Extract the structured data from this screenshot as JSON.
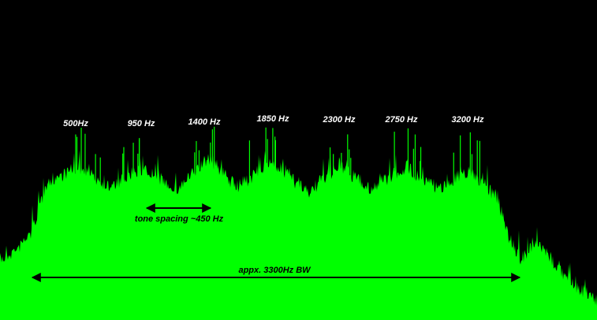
{
  "tones": [
    "500Hz",
    "950 Hz",
    "1400 Hz",
    "1850 Hz",
    "2300 Hz",
    "2750 Hz",
    "3200 Hz"
  ],
  "spacing_label": "tone spacing ~450 Hz",
  "bandwidth_label": "appx. 3300Hz BW"
}
